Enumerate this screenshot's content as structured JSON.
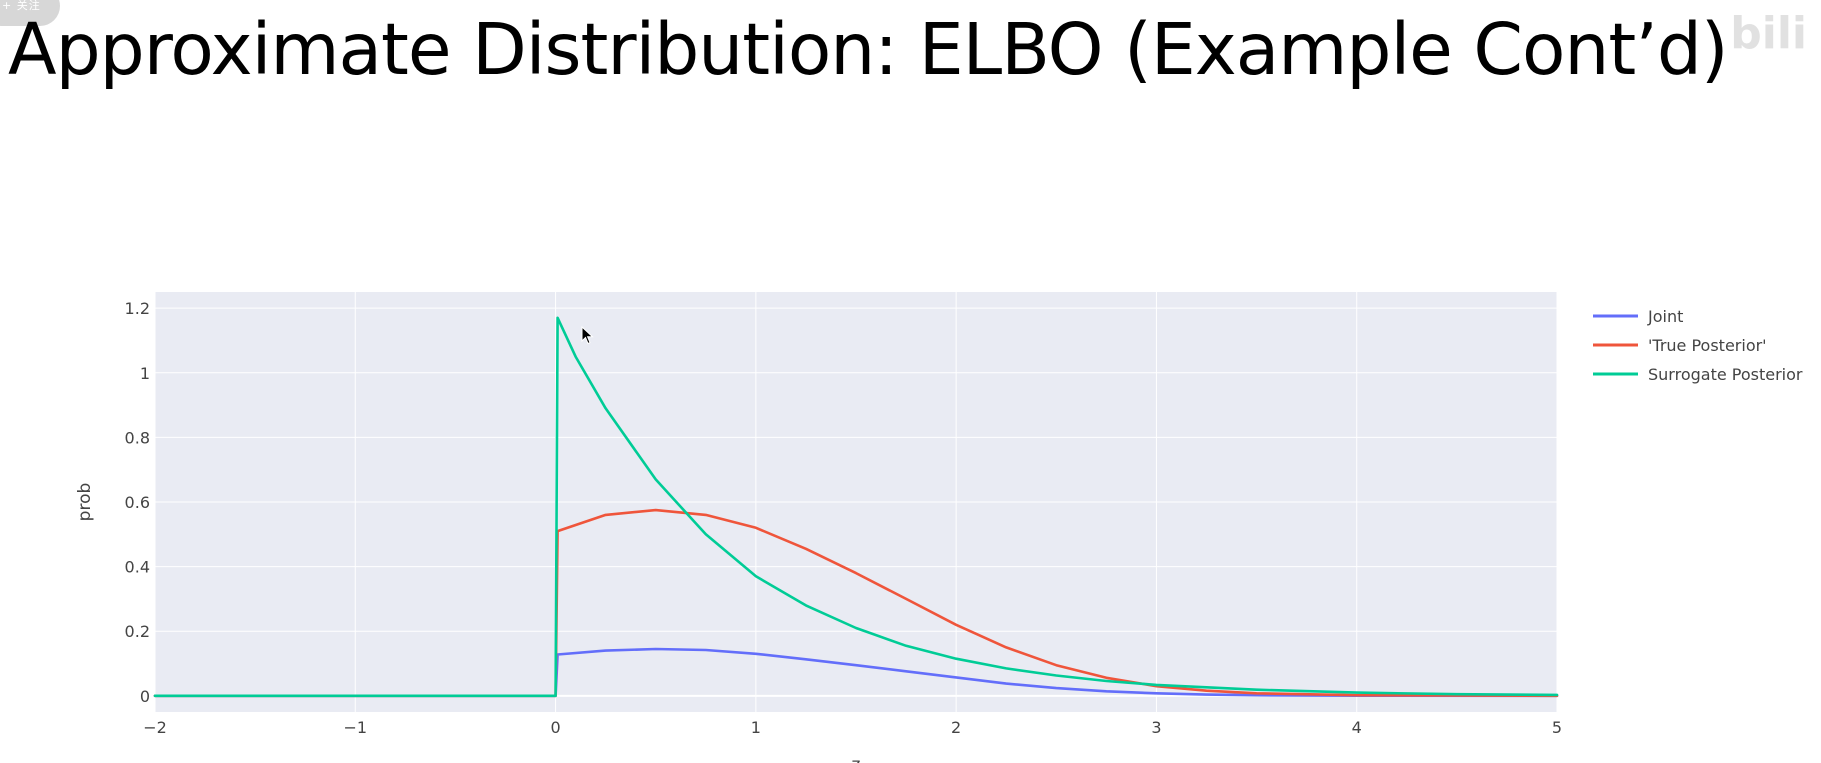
{
  "overlay": {
    "follow_label": "+ 关注",
    "watermark_text": "bili"
  },
  "title": "Approximate Distribution: ELBO (Example Cont’d)",
  "colors": {
    "plot_bg": "#e9ebf3",
    "grid": "#ffffff",
    "axis_text": "#444444"
  },
  "chart_data": {
    "type": "line",
    "ylabel": "prob",
    "xlabel": "z",
    "xlim": [
      -2,
      5
    ],
    "ylim": [
      -0.05,
      1.25
    ],
    "x_ticks": [
      -2,
      -1,
      0,
      1,
      2,
      3,
      4,
      5
    ],
    "x_tick_labels": [
      "−2",
      "−1",
      "0",
      "1",
      "2",
      "3",
      "4",
      "5"
    ],
    "y_ticks": [
      0,
      0.2,
      0.4,
      0.6,
      0.8,
      1.0,
      1.2
    ],
    "y_tick_labels": [
      "0",
      "0.2",
      "0.4",
      "0.6",
      "0.8",
      "1",
      "1.2"
    ],
    "grid": true,
    "legend_position": "top-right, outside plot",
    "series": [
      {
        "name": "Joint",
        "color": "#636efa",
        "points": [
          [
            -2,
            0
          ],
          [
            0,
            0
          ],
          [
            0.01,
            0.128
          ],
          [
            0.25,
            0.14
          ],
          [
            0.5,
            0.145
          ],
          [
            0.75,
            0.142
          ],
          [
            1.0,
            0.13
          ],
          [
            1.25,
            0.113
          ],
          [
            1.5,
            0.095
          ],
          [
            1.75,
            0.076
          ],
          [
            2.0,
            0.057
          ],
          [
            2.25,
            0.038
          ],
          [
            2.5,
            0.024
          ],
          [
            2.75,
            0.014
          ],
          [
            3.0,
            0.008
          ],
          [
            3.25,
            0.004
          ],
          [
            3.5,
            0.002
          ],
          [
            4.0,
            0.0005
          ],
          [
            5.0,
            0
          ]
        ]
      },
      {
        "name": "'True Posterior'",
        "color": "#ef553b",
        "points": [
          [
            -2,
            0
          ],
          [
            0,
            0
          ],
          [
            0.01,
            0.51
          ],
          [
            0.25,
            0.56
          ],
          [
            0.5,
            0.575
          ],
          [
            0.75,
            0.56
          ],
          [
            1.0,
            0.52
          ],
          [
            1.25,
            0.455
          ],
          [
            1.5,
            0.38
          ],
          [
            1.75,
            0.3
          ],
          [
            2.0,
            0.22
          ],
          [
            2.25,
            0.15
          ],
          [
            2.5,
            0.095
          ],
          [
            2.75,
            0.056
          ],
          [
            3.0,
            0.03
          ],
          [
            3.25,
            0.016
          ],
          [
            3.5,
            0.008
          ],
          [
            4.0,
            0.002
          ],
          [
            5.0,
            0
          ]
        ]
      },
      {
        "name": "Surrogate Posterior",
        "color": "#00cc96",
        "points": [
          [
            -2,
            0
          ],
          [
            0,
            0
          ],
          [
            0.01,
            1.17
          ],
          [
            0.1,
            1.05
          ],
          [
            0.25,
            0.89
          ],
          [
            0.5,
            0.67
          ],
          [
            0.75,
            0.5
          ],
          [
            1.0,
            0.37
          ],
          [
            1.25,
            0.28
          ],
          [
            1.5,
            0.21
          ],
          [
            1.75,
            0.155
          ],
          [
            2.0,
            0.115
          ],
          [
            2.25,
            0.085
          ],
          [
            2.5,
            0.063
          ],
          [
            2.75,
            0.046
          ],
          [
            3.0,
            0.034
          ],
          [
            3.5,
            0.019
          ],
          [
            4.0,
            0.01
          ],
          [
            4.5,
            0.005
          ],
          [
            5.0,
            0.003
          ]
        ]
      }
    ]
  }
}
